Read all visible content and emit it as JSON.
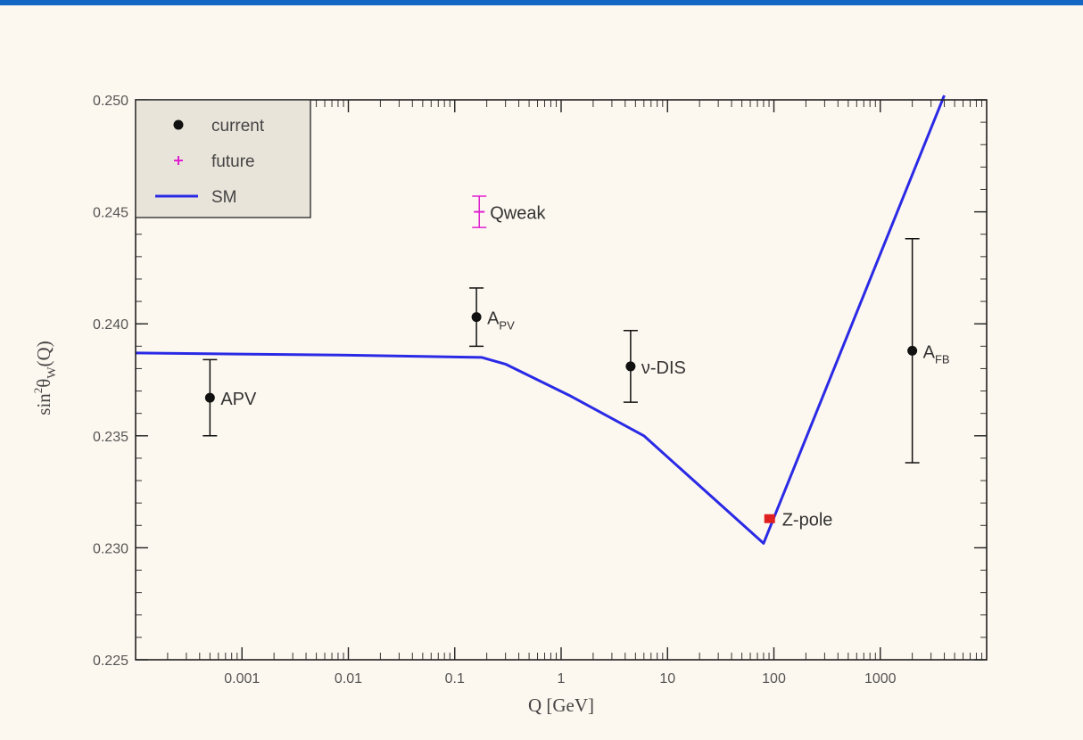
{
  "chart_data": {
    "type": "scatter",
    "xlabel": "Q [GeV]",
    "ylabel": "sin²θ̂_W(Q)",
    "ylabel_parts": {
      "main": "sin",
      "sup": "2",
      "theta": "θ",
      "hat": "^",
      "sub": "W",
      "arg": "(Q)"
    },
    "xscale": "log",
    "xlim": [
      0.0001,
      10000
    ],
    "ylim": [
      0.225,
      0.25
    ],
    "x_ticks": [
      0.001,
      0.01,
      0.1,
      1,
      10,
      100,
      1000
    ],
    "x_tick_labels": [
      "0.001",
      "0.01",
      "0.1",
      "1",
      "10",
      "100",
      "1000"
    ],
    "y_ticks": [
      0.225,
      0.23,
      0.235,
      0.24,
      0.245,
      0.25
    ],
    "y_tick_labels": [
      "0.225",
      "0.230",
      "0.235",
      "0.240",
      "0.245",
      "0.250"
    ],
    "legend": {
      "position": "top-left",
      "entries": [
        {
          "label": "current",
          "marker": "dot",
          "color": "#111111"
        },
        {
          "label": "future",
          "marker": "plus",
          "color": "#e020d0"
        },
        {
          "label": "SM",
          "marker": "line",
          "color": "#2a2ae6"
        }
      ]
    },
    "series": [
      {
        "name": "current",
        "color": "#111111",
        "points": [
          {
            "label": "APV",
            "x": 0.0005,
            "y": 0.2367,
            "err_low": 0.0017,
            "err_high": 0.0017
          },
          {
            "label": "A",
            "label_sub": "PV",
            "x": 0.16,
            "y": 0.2403,
            "err_low": 0.0013,
            "err_high": 0.0013
          },
          {
            "label": "ν-DIS",
            "x": 4.5,
            "y": 0.2381,
            "err_low": 0.0016,
            "err_high": 0.0016
          },
          {
            "label": "A",
            "label_sub": "FB",
            "x": 2000,
            "y": 0.2388,
            "err_low": 0.005,
            "err_high": 0.005
          }
        ]
      },
      {
        "name": "future",
        "color": "#e020d0",
        "points": [
          {
            "label": "Qweak",
            "x": 0.17,
            "y": 0.245,
            "err_low": 0.0007,
            "err_high": 0.0007
          }
        ]
      },
      {
        "name": "Z-pole",
        "color": "#e02020",
        "points": [
          {
            "label": "Z-pole",
            "x": 91.2,
            "y": 0.2313,
            "err_low": 0.0001,
            "err_high": 0.0001
          }
        ]
      },
      {
        "name": "SM",
        "type": "line",
        "color": "#2a2ae6",
        "x": [
          0.0001,
          0.01,
          0.18,
          0.3,
          1.2,
          6,
          80,
          4000
        ],
        "y": [
          0.2387,
          0.2386,
          0.2385,
          0.2382,
          0.2368,
          0.235,
          0.2302,
          0.2502
        ]
      }
    ]
  }
}
